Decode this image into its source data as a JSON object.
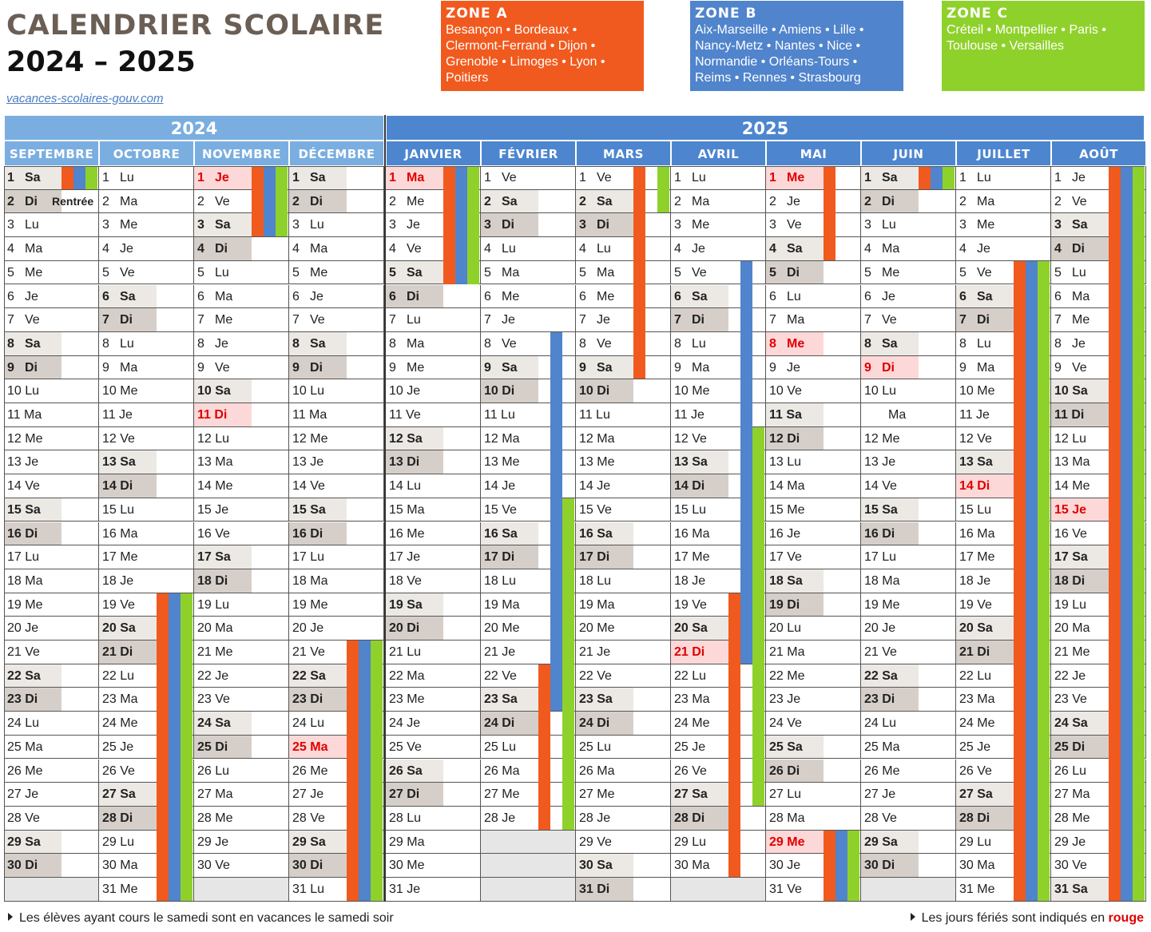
{
  "header": {
    "title": "CALENDRIER SCOLAIRE",
    "years": "2024 – 2025",
    "site": "vacances-scolaires-gouv.com"
  },
  "zones": [
    {
      "label": "ZONE A",
      "color": "#f15a1e",
      "cities": [
        "Besançon • Bordeaux •",
        "Clermont-Ferrand • Dijon •",
        "Grenoble • Limoges • Lyon •",
        "Poitiers"
      ]
    },
    {
      "label": "ZONE B",
      "color": "#5084cc",
      "cities": [
        "Aix-Marseille • Amiens • Lille •",
        "Nancy-Metz • Nantes • Nice •",
        "Normandie • Orléans-Tours •",
        "Reims • Rennes • Strasbourg"
      ]
    },
    {
      "label": "ZONE C",
      "color": "#8fd12b",
      "cities": [
        "Créteil • Montpellier • Paris •",
        "Toulouse • Versailles"
      ]
    }
  ],
  "year_headers": [
    "2024",
    "2025"
  ],
  "months": [
    {
      "name": "SEPTEMBRE",
      "start": 6,
      "days": 30,
      "holidays": [],
      "note": {
        "day": 2,
        "text": "Rentrée"
      }
    },
    {
      "name": "OCTOBRE",
      "start": 1,
      "days": 31,
      "holidays": []
    },
    {
      "name": "NOVEMBRE",
      "start": 4,
      "days": 30,
      "holidays": [
        1,
        11
      ]
    },
    {
      "name": "DÉCEMBRE",
      "start": 6,
      "days": 31,
      "holidays": [
        25
      ]
    },
    {
      "name": "JANVIER",
      "start": 2,
      "days": 31,
      "holidays": [
        1
      ]
    },
    {
      "name": "FÉVRIER",
      "start": 5,
      "days": 28,
      "holidays": []
    },
    {
      "name": "MARS",
      "start": 5,
      "days": 31,
      "holidays": []
    },
    {
      "name": "AVRIL",
      "start": 1,
      "days": 30,
      "holidays": [
        21
      ]
    },
    {
      "name": "MAI",
      "start": 3,
      "days": 31,
      "holidays": [
        1,
        8,
        29
      ]
    },
    {
      "name": "JUIN",
      "start": 6,
      "days": 30,
      "holidays": [
        9
      ],
      "blank_abbr_day": 11
    },
    {
      "name": "JUILLET",
      "start": 1,
      "days": 31,
      "holidays": [
        14
      ]
    },
    {
      "name": "AOÛT",
      "start": 4,
      "days": 31,
      "holidays": [
        15
      ]
    }
  ],
  "day_abbr": [
    "Lu",
    "Ma",
    "Me",
    "Je",
    "Ve",
    "Sa",
    "Di"
  ],
  "vacations": [
    {
      "month": 0,
      "zone": "A",
      "from": 1,
      "to": 1
    },
    {
      "month": 0,
      "zone": "B",
      "from": 1,
      "to": 1
    },
    {
      "month": 0,
      "zone": "C",
      "from": 1,
      "to": 1
    },
    {
      "month": 1,
      "zone": "A",
      "from": 19,
      "to": 31
    },
    {
      "month": 1,
      "zone": "B",
      "from": 19,
      "to": 31
    },
    {
      "month": 1,
      "zone": "C",
      "from": 19,
      "to": 31
    },
    {
      "month": 2,
      "zone": "A",
      "from": 1,
      "to": 3
    },
    {
      "month": 2,
      "zone": "B",
      "from": 1,
      "to": 3
    },
    {
      "month": 2,
      "zone": "C",
      "from": 1,
      "to": 3
    },
    {
      "month": 3,
      "zone": "A",
      "from": 21,
      "to": 31
    },
    {
      "month": 3,
      "zone": "B",
      "from": 21,
      "to": 31
    },
    {
      "month": 3,
      "zone": "C",
      "from": 21,
      "to": 31
    },
    {
      "month": 4,
      "zone": "A",
      "from": 1,
      "to": 5
    },
    {
      "month": 4,
      "zone": "B",
      "from": 1,
      "to": 5
    },
    {
      "month": 4,
      "zone": "C",
      "from": 1,
      "to": 5
    },
    {
      "month": 5,
      "zone": "B",
      "from": 8,
      "to": 23
    },
    {
      "month": 5,
      "zone": "C",
      "from": 15,
      "to": 28
    },
    {
      "month": 5,
      "zone": "A",
      "from": 22,
      "to": 28
    },
    {
      "month": 6,
      "zone": "A",
      "from": 1,
      "to": 9
    },
    {
      "month": 6,
      "zone": "C",
      "from": 1,
      "to": 2
    },
    {
      "month": 7,
      "zone": "B",
      "from": 5,
      "to": 21
    },
    {
      "month": 7,
      "zone": "C",
      "from": 12,
      "to": 27
    },
    {
      "month": 7,
      "zone": "A",
      "from": 19,
      "to": 30
    },
    {
      "month": 8,
      "zone": "A",
      "from": 1,
      "to": 4
    },
    {
      "month": 8,
      "zone": "A",
      "from": 29,
      "to": 31
    },
    {
      "month": 8,
      "zone": "B",
      "from": 29,
      "to": 31
    },
    {
      "month": 8,
      "zone": "C",
      "from": 29,
      "to": 31
    },
    {
      "month": 9,
      "zone": "A",
      "from": 1,
      "to": 1
    },
    {
      "month": 9,
      "zone": "B",
      "from": 1,
      "to": 1
    },
    {
      "month": 9,
      "zone": "C",
      "from": 1,
      "to": 1
    },
    {
      "month": 10,
      "zone": "A",
      "from": 5,
      "to": 31
    },
    {
      "month": 10,
      "zone": "B",
      "from": 5,
      "to": 31
    },
    {
      "month": 10,
      "zone": "C",
      "from": 5,
      "to": 31
    },
    {
      "month": 11,
      "zone": "A",
      "from": 1,
      "to": 31
    },
    {
      "month": 11,
      "zone": "B",
      "from": 1,
      "to": 31
    },
    {
      "month": 11,
      "zone": "C",
      "from": 1,
      "to": 31
    }
  ],
  "colors": {
    "zone_a": "#f15a1e",
    "zone_b": "#5084cc",
    "zone_c": "#8fd12b",
    "year_2024": "#7aaee0",
    "year_2025": "#4d86cf",
    "month_2024": "#7aaee0",
    "month_2025": "#4d86cf",
    "saturday": "#ece8e4",
    "sunday": "#d6cfc9",
    "holiday_bg": "#fdd8d8",
    "holiday_text": "#e00000"
  },
  "footer": {
    "left": "Les élèves ayant cours le samedi sont en vacances le samedi soir",
    "right_prefix": "Les jours fériés sont indiqués en",
    "right_red": "rouge"
  }
}
